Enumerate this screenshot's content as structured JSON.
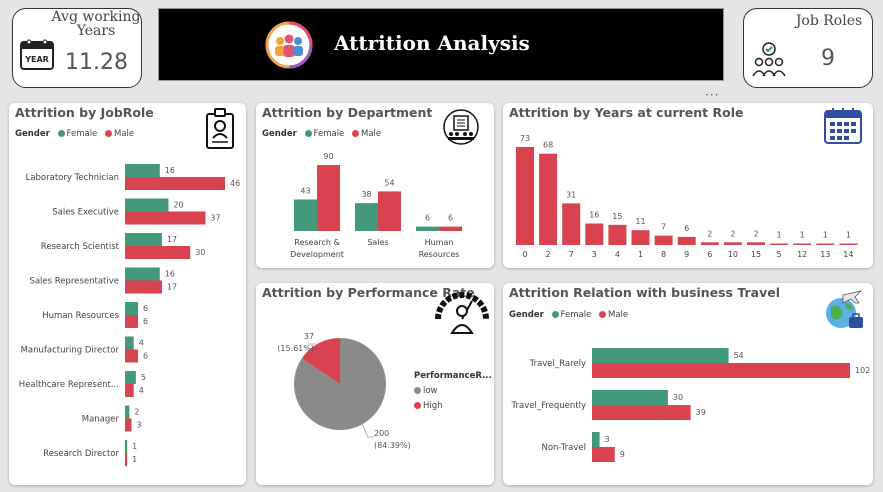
{
  "colors": {
    "female": "#43997a",
    "male": "#d9434f",
    "low": "#8a8a8a",
    "high": "#d9434f"
  },
  "kpi_left": {
    "title": "Avg working Years",
    "value": "11.28",
    "icon": "calendar-year-icon",
    "icon_label": "YEAR"
  },
  "kpi_right": {
    "title": "Job Roles",
    "value": "9",
    "icon": "team-check-icon"
  },
  "banner": {
    "title": "Attrition Analysis",
    "icon": "people-group-icon"
  },
  "legend": {
    "gender": "Gender",
    "female": "Female",
    "male": "Male",
    "perf_title": "PerformanceR...",
    "low": "low",
    "high": "High"
  },
  "chart_data": [
    {
      "id": "jobrole",
      "type": "bar",
      "orientation": "horizontal",
      "title": "Attrition by JobRole",
      "categories": [
        "Laboratory Technician",
        "Sales Executive",
        "Research Scientist",
        "Sales Representative",
        "Human Resources",
        "Manufacturing Director",
        "Healthcare Represent...",
        "Manager",
        "Research Director"
      ],
      "series": [
        {
          "name": "Female",
          "values": [
            16,
            20,
            17,
            16,
            6,
            4,
            5,
            2,
            1
          ]
        },
        {
          "name": "Male",
          "values": [
            46,
            37,
            30,
            17,
            6,
            6,
            4,
            3,
            1
          ]
        }
      ]
    },
    {
      "id": "department",
      "type": "bar",
      "title": "Attrition by Department",
      "categories": [
        "Research & Development",
        "Sales",
        "Human Resources"
      ],
      "series": [
        {
          "name": "Female",
          "values": [
            43,
            38,
            6
          ]
        },
        {
          "name": "Male",
          "values": [
            90,
            54,
            6
          ]
        }
      ]
    },
    {
      "id": "years_role",
      "type": "bar",
      "title": "Attrition by Years at current Role",
      "categories": [
        "0",
        "2",
        "7",
        "3",
        "4",
        "1",
        "8",
        "9",
        "6",
        "10",
        "15",
        "5",
        "12",
        "13",
        "14"
      ],
      "values": [
        73,
        68,
        31,
        16,
        15,
        11,
        7,
        6,
        2,
        2,
        2,
        1,
        1,
        1,
        1
      ]
    },
    {
      "id": "performance",
      "type": "pie",
      "title": "Attrition by Performance Rate",
      "labels": [
        "low",
        "High"
      ],
      "values": [
        200,
        37
      ],
      "value_labels": [
        "200",
        "37"
      ],
      "percent_labels": [
        "(84.39%)",
        "(15.61%)"
      ]
    },
    {
      "id": "travel",
      "type": "bar",
      "orientation": "horizontal",
      "title": "Attrition Relation with business Travel",
      "categories": [
        "Travel_Rarely",
        "Travel_Frequently",
        "Non-Travel"
      ],
      "series": [
        {
          "name": "Female",
          "values": [
            54,
            30,
            3
          ]
        },
        {
          "name": "Male",
          "values": [
            102,
            39,
            9
          ]
        }
      ]
    }
  ]
}
